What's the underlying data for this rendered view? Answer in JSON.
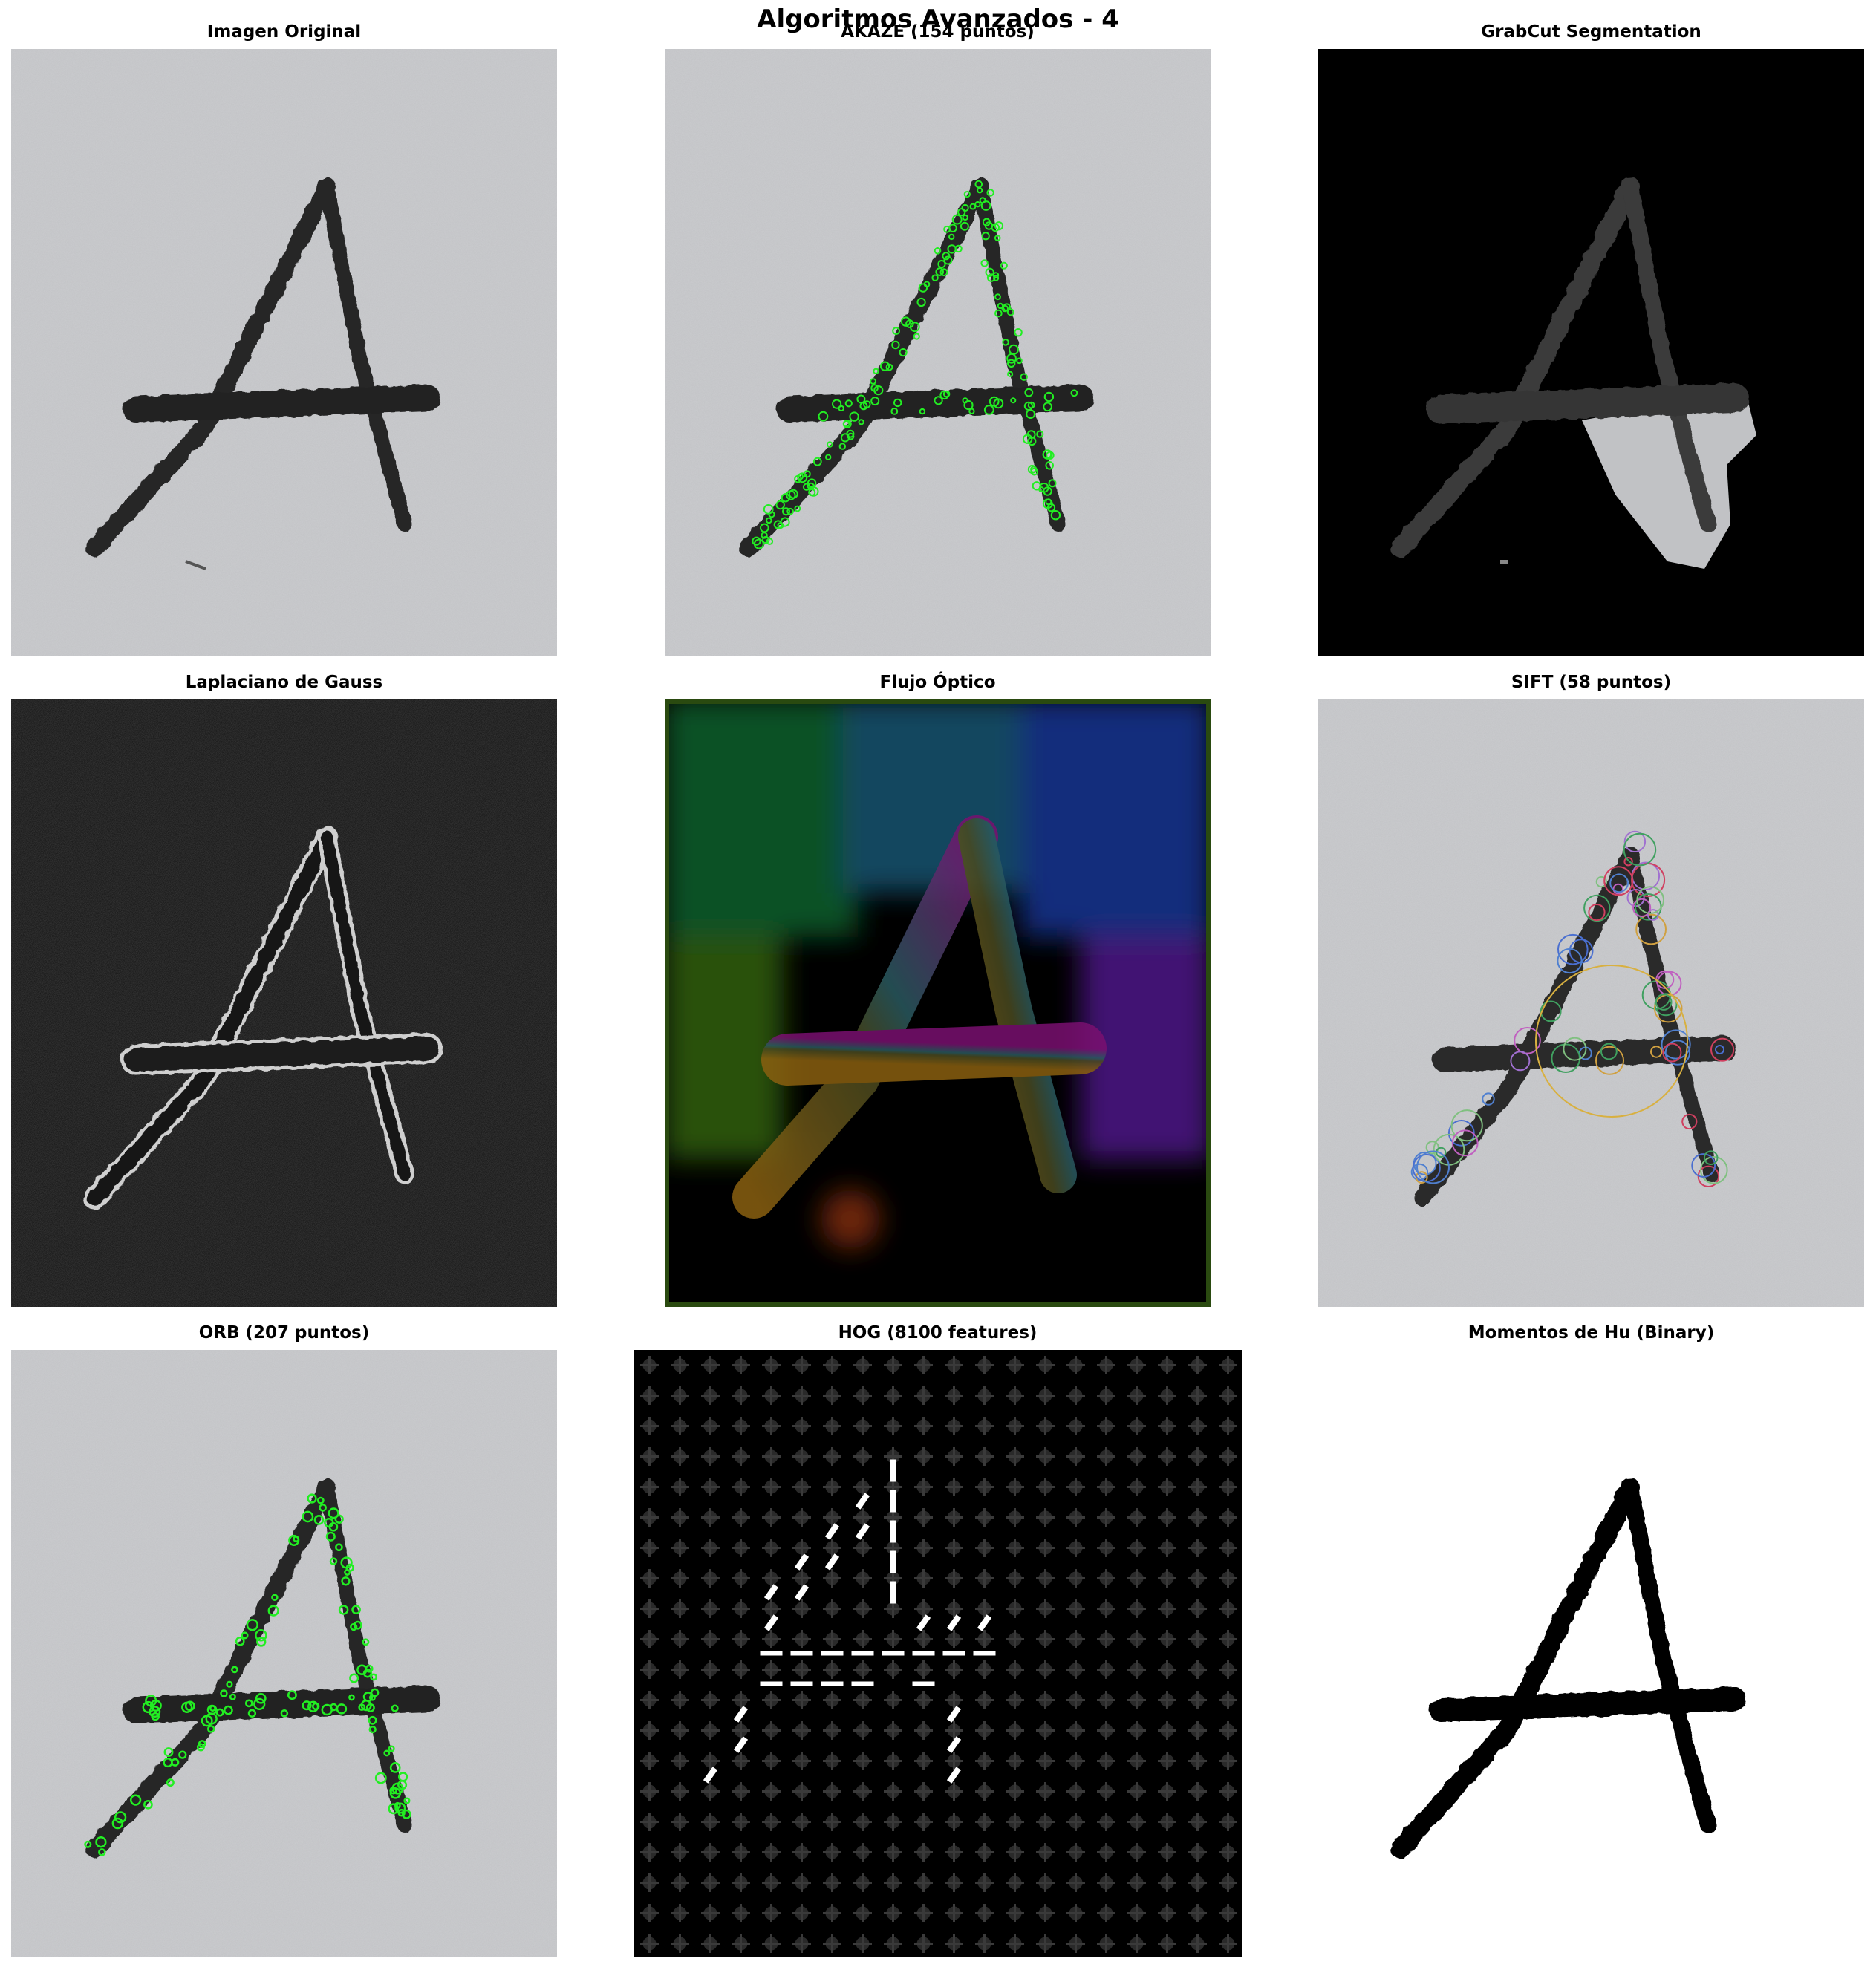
{
  "figure": {
    "title": "Algoritmos Avanzados - 4"
  },
  "panels": [
    {
      "id": "original",
      "title": "Imagen Original"
    },
    {
      "id": "akaze",
      "title": "AKAZE (154 puntos)",
      "keypoints": 154
    },
    {
      "id": "grabcut",
      "title": "GrabCut Segmentation"
    },
    {
      "id": "log",
      "title": "Laplaciano de Gauss"
    },
    {
      "id": "flow",
      "title": "Flujo Óptico"
    },
    {
      "id": "sift",
      "title": "SIFT (58 puntos)",
      "keypoints": 58
    },
    {
      "id": "orb",
      "title": "ORB (207 puntos)",
      "keypoints": 207
    },
    {
      "id": "hog",
      "title": "HOG (8100 features)",
      "features": 8100
    },
    {
      "id": "hu",
      "title": "Momentos de Hu (Binary)"
    }
  ],
  "colors": {
    "paper": "#c2c3c6",
    "ink": "#262626",
    "keypoint_green": "#22ee22",
    "black": "#000000",
    "white": "#ffffff"
  }
}
